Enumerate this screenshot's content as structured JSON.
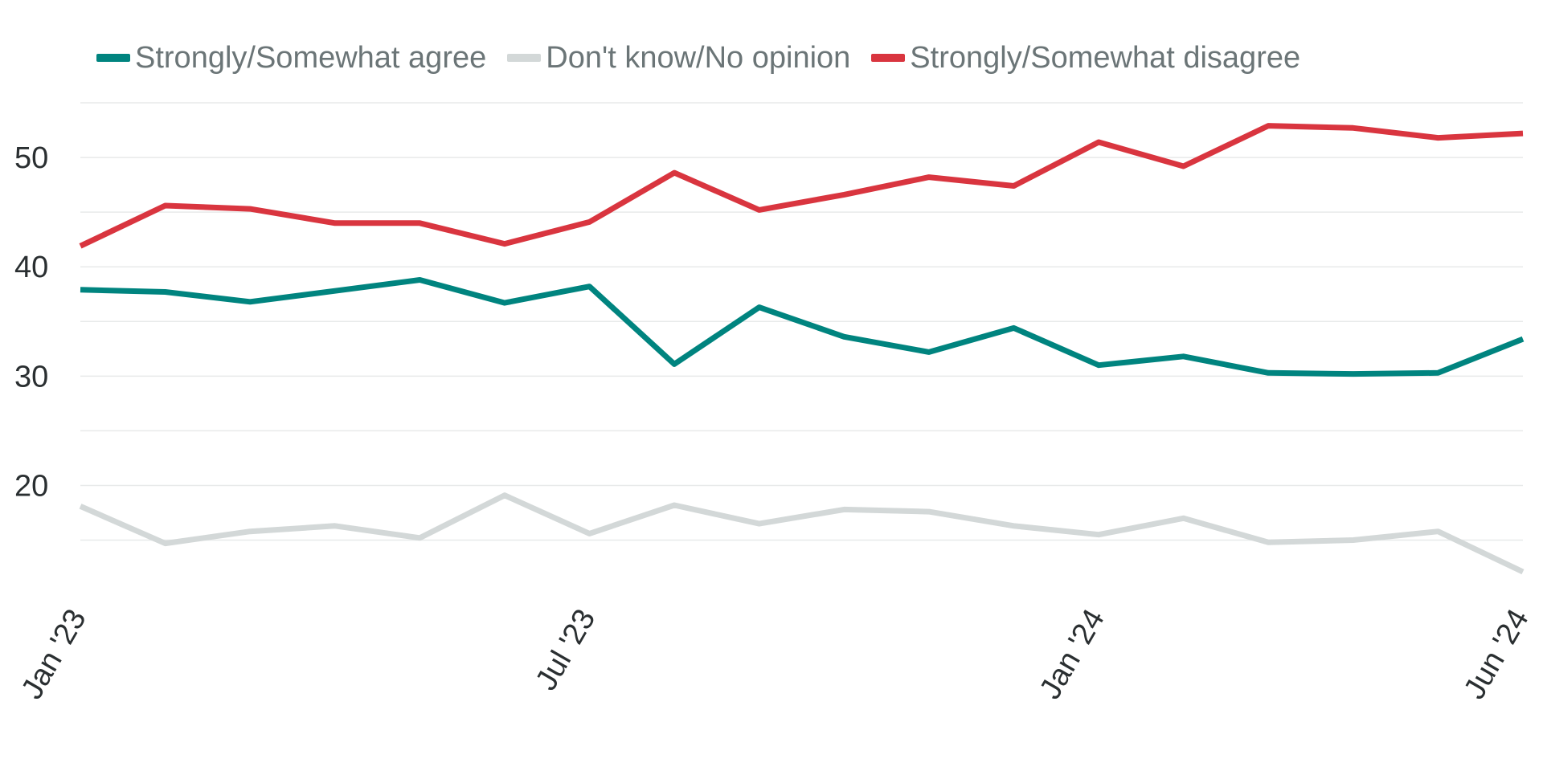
{
  "chart_data": {
    "type": "line",
    "title": "",
    "xlabel": "",
    "ylabel": "",
    "x": [
      "Jan '23",
      "Feb '23",
      "Mar '23",
      "Apr '23",
      "May '23",
      "Jun '23",
      "Jul '23",
      "Aug '23",
      "Sep '23",
      "Oct '23",
      "Nov '23",
      "Dec '23",
      "Jan '24",
      "Feb '24",
      "Mar '24",
      "Apr '24",
      "May '24",
      "Jun '24"
    ],
    "x_tick_labels": [
      {
        "index": 0,
        "label": "Jan '23"
      },
      {
        "index": 6,
        "label": "Jul '23"
      },
      {
        "index": 12,
        "label": "Jan '24"
      },
      {
        "index": 17,
        "label": "Jun '24"
      }
    ],
    "y_ticks": [
      20,
      30,
      40,
      50
    ],
    "ylim": [
      11,
      55
    ],
    "grid": true,
    "legend_position": "top-left",
    "series": [
      {
        "name": "Strongly/Somewhat agree",
        "color": "#00847f",
        "points": [
          [
            0,
            37.9
          ],
          [
            1,
            37.7
          ],
          [
            2,
            36.8
          ],
          [
            3,
            37.8
          ],
          [
            4,
            38.8
          ],
          [
            5,
            36.7
          ],
          [
            6,
            38.2
          ],
          [
            7,
            31.1
          ],
          [
            8,
            36.3
          ],
          [
            9,
            33.6
          ],
          [
            10,
            32.2
          ],
          [
            11,
            34.4
          ],
          [
            12,
            31.0
          ],
          [
            13,
            31.8
          ],
          [
            14,
            30.3
          ],
          [
            15,
            30.2
          ],
          [
            16,
            30.3
          ],
          [
            17,
            33.4
          ]
        ]
      },
      {
        "name": "Don't know/No opinion",
        "color": "#d3d8d8",
        "points": [
          [
            0,
            18.1
          ],
          [
            1,
            14.7
          ],
          [
            2,
            15.8
          ],
          [
            3,
            16.3
          ],
          [
            4,
            15.2
          ],
          [
            5,
            19.1
          ],
          [
            6,
            15.6
          ],
          [
            7,
            18.2
          ],
          [
            8,
            16.5
          ],
          [
            9,
            17.8
          ],
          [
            10,
            17.6
          ],
          [
            11,
            16.3
          ],
          [
            12,
            15.5
          ],
          [
            13,
            17.0
          ],
          [
            14,
            14.8
          ],
          [
            15,
            15.0
          ],
          [
            16,
            15.8
          ],
          [
            17,
            12.1
          ]
        ]
      },
      {
        "name": "Strongly/Somewhat disagree",
        "color": "#d9353f",
        "points": [
          [
            0,
            41.9
          ],
          [
            1,
            45.6
          ],
          [
            2,
            45.3
          ],
          [
            3,
            44.0
          ],
          [
            4,
            44.0
          ],
          [
            5,
            42.1
          ],
          [
            6,
            44.1
          ],
          [
            7,
            48.6
          ],
          [
            8,
            45.2
          ],
          [
            9,
            46.6
          ],
          [
            10,
            48.2
          ],
          [
            11,
            47.4
          ],
          [
            12,
            51.4
          ],
          [
            13,
            49.2
          ],
          [
            14,
            52.9
          ],
          [
            15,
            52.7
          ],
          [
            16,
            51.8
          ],
          [
            17,
            52.2
          ]
        ]
      }
    ]
  }
}
